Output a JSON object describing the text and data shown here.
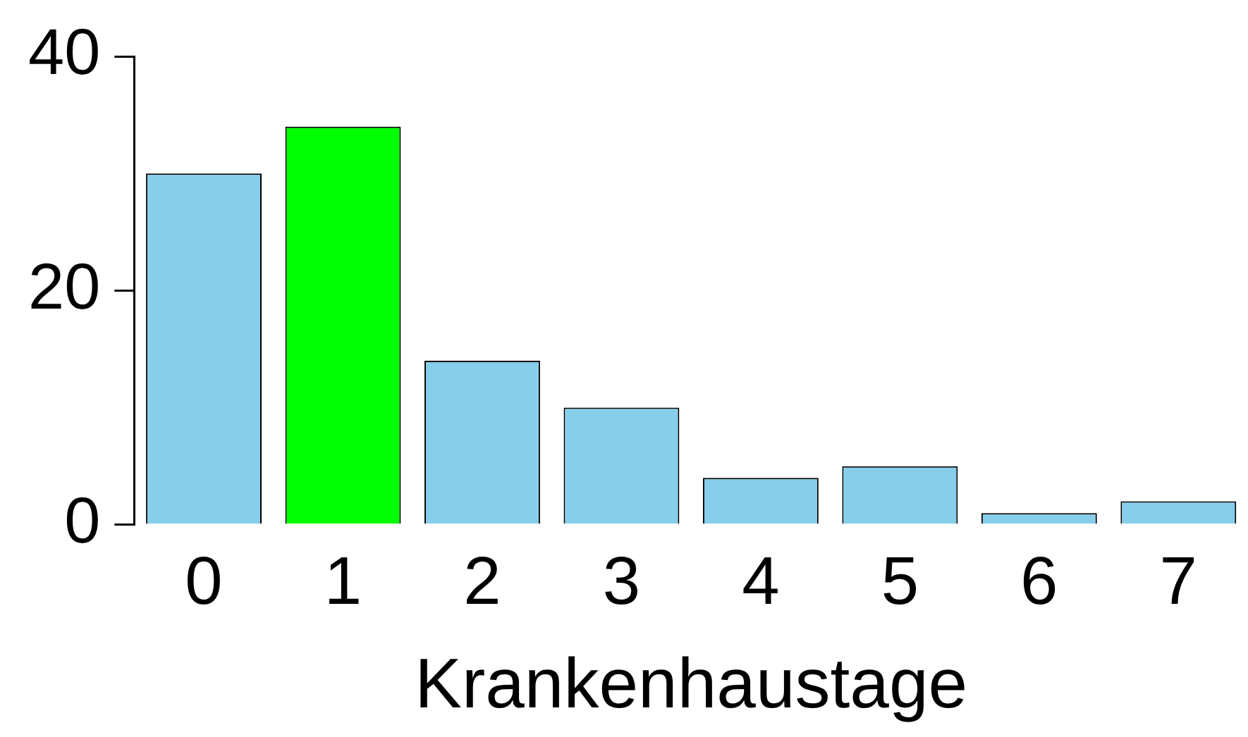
{
  "chart_data": {
    "type": "bar",
    "xlabel": "Krankenhaustage",
    "categories": [
      "0",
      "1",
      "2",
      "3",
      "4",
      "5",
      "6",
      "7"
    ],
    "values": [
      30,
      34,
      14,
      10,
      4,
      5,
      1,
      2
    ],
    "colors": [
      "#87ceeb",
      "#00ff00",
      "#87ceeb",
      "#87ceeb",
      "#87ceeb",
      "#87ceeb",
      "#87ceeb",
      "#87ceeb"
    ],
    "ylim": [
      0,
      40
    ],
    "yticks": [
      0,
      20,
      40
    ],
    "grid": false
  }
}
